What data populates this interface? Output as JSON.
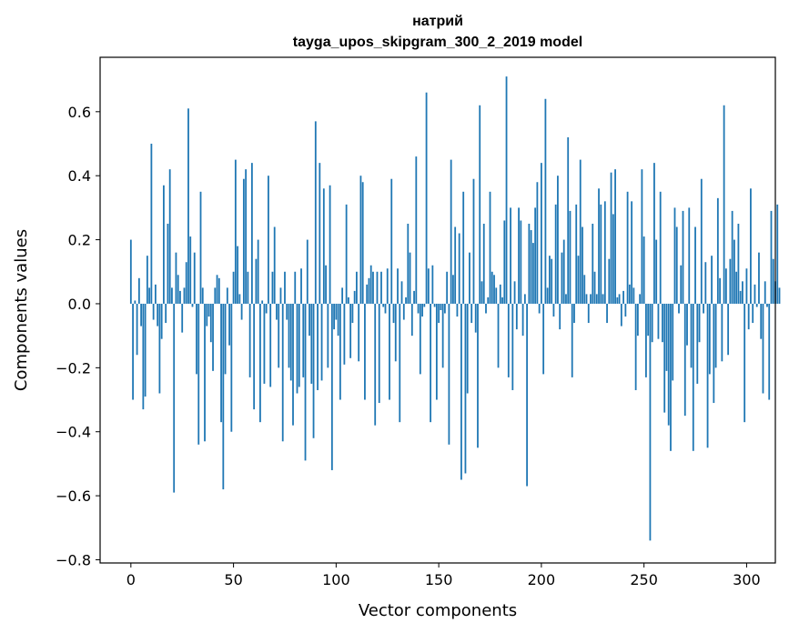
{
  "chart_data": {
    "type": "bar",
    "title": "натрий",
    "subtitle": "tayga_upos_skipgram_300_2_2019 model",
    "xlabel": "Vector components",
    "ylabel": "Components values",
    "xlim": [
      -15,
      314
    ],
    "ylim": [
      -0.81,
      0.77
    ],
    "xticks": [
      0,
      50,
      100,
      150,
      200,
      250,
      300
    ],
    "xtick_labels": [
      "0",
      "50",
      "100",
      "150",
      "200",
      "250",
      "300"
    ],
    "yticks": [
      -0.8,
      -0.6,
      -0.4,
      -0.2,
      0.0,
      0.2,
      0.4,
      0.6
    ],
    "ytick_labels": [
      "−0.8",
      "−0.6",
      "−0.4",
      "−0.2",
      "0.0",
      "0.2",
      "0.4",
      "0.6"
    ],
    "bar_color": "#1f77b4",
    "grid": false,
    "values": [
      0.2,
      -0.3,
      0.01,
      -0.16,
      0.08,
      -0.07,
      -0.33,
      -0.29,
      0.15,
      0.05,
      0.5,
      -0.05,
      0.06,
      -0.07,
      -0.28,
      -0.11,
      0.37,
      -0.06,
      0.25,
      0.42,
      0.05,
      -0.59,
      0.16,
      0.09,
      0.04,
      -0.09,
      0.05,
      0.13,
      0.61,
      0.21,
      -0.01,
      0.16,
      -0.22,
      -0.44,
      0.35,
      0.05,
      -0.43,
      -0.07,
      -0.04,
      -0.12,
      -0.21,
      0.05,
      0.09,
      0.08,
      -0.37,
      -0.58,
      -0.22,
      0.05,
      -0.13,
      -0.4,
      0.1,
      0.45,
      0.18,
      0.03,
      -0.05,
      0.39,
      0.42,
      0.1,
      -0.23,
      0.44,
      -0.33,
      0.14,
      0.2,
      -0.37,
      0.01,
      -0.25,
      -0.03,
      0.4,
      -0.26,
      0.1,
      0.24,
      -0.05,
      -0.2,
      0.05,
      -0.43,
      0.1,
      -0.05,
      -0.2,
      -0.24,
      -0.38,
      0.1,
      -0.28,
      -0.26,
      0.11,
      -0.23,
      -0.49,
      0.2,
      -0.1,
      -0.25,
      -0.42,
      0.57,
      -0.27,
      0.44,
      -0.24,
      0.36,
      0.12,
      -0.2,
      0.37,
      -0.52,
      -0.08,
      -0.05,
      -0.1,
      -0.3,
      0.05,
      -0.19,
      0.31,
      0.02,
      -0.17,
      -0.06,
      0.04,
      0.1,
      -0.18,
      0.4,
      0.38,
      -0.3,
      0.06,
      0.08,
      0.12,
      0.1,
      -0.38,
      0.1,
      -0.31,
      0.1,
      -0.01,
      -0.03,
      0.11,
      -0.3,
      0.39,
      -0.06,
      -0.18,
      0.11,
      -0.37,
      0.07,
      -0.05,
      0.02,
      0.25,
      0.16,
      -0.1,
      0.04,
      0.46,
      -0.03,
      -0.22,
      -0.04,
      -0.01,
      0.66,
      0.11,
      -0.37,
      0.12,
      -0.01,
      -0.3,
      -0.06,
      -0.02,
      -0.2,
      -0.03,
      0.1,
      -0.44,
      0.45,
      0.09,
      0.24,
      -0.04,
      0.22,
      -0.55,
      0.35,
      -0.53,
      -0.28,
      0.16,
      -0.06,
      0.39,
      -0.09,
      -0.45,
      0.62,
      0.07,
      0.25,
      -0.03,
      0.02,
      0.35,
      0.1,
      0.09,
      0.05,
      -0.2,
      0.06,
      0.02,
      0.26,
      0.71,
      -0.23,
      0.3,
      -0.27,
      0.07,
      -0.08,
      0.3,
      0.26,
      -0.1,
      0.03,
      -0.57,
      0.25,
      0.23,
      0.19,
      0.3,
      0.38,
      -0.03,
      0.44,
      -0.22,
      0.64,
      0.05,
      0.15,
      0.14,
      -0.04,
      0.31,
      0.4,
      -0.08,
      0.16,
      0.2,
      0.03,
      0.52,
      0.29,
      -0.23,
      -0.06,
      0.31,
      0.15,
      0.45,
      0.24,
      0.09,
      0.03,
      -0.06,
      0.03,
      0.25,
      0.1,
      0.03,
      0.36,
      0.31,
      0.03,
      0.32,
      -0.06,
      0.14,
      0.41,
      0.28,
      0.42,
      0.02,
      0.03,
      -0.07,
      0.04,
      -0.04,
      0.35,
      0.06,
      0.32,
      0.05,
      -0.27,
      -0.1,
      0.03,
      0.42,
      0.21,
      -0.23,
      -0.1,
      -0.74,
      -0.12,
      0.44,
      0.2,
      -0.11,
      0.35,
      -0.12,
      -0.34,
      -0.21,
      -0.38,
      -0.46,
      -0.24,
      0.3,
      0.24,
      -0.03,
      0.12,
      0.29,
      -0.35,
      -0.13,
      0.3,
      -0.2,
      -0.46,
      0.24,
      -0.25,
      -0.12,
      0.39,
      -0.03,
      0.13,
      -0.45,
      -0.22,
      0.15,
      -0.31,
      -0.2,
      0.33,
      0.08,
      -0.18,
      0.62,
      0.11,
      -0.16,
      0.14,
      0.29,
      0.2,
      0.1,
      0.25,
      0.04,
      0.07,
      -0.37,
      0.11,
      -0.08,
      0.36,
      -0.06,
      0.06,
      -0.01,
      0.16,
      -0.11,
      -0.28,
      0.07,
      -0.01,
      -0.3,
      0.29,
      0.14,
      0.07,
      0.31,
      0.05
    ]
  }
}
